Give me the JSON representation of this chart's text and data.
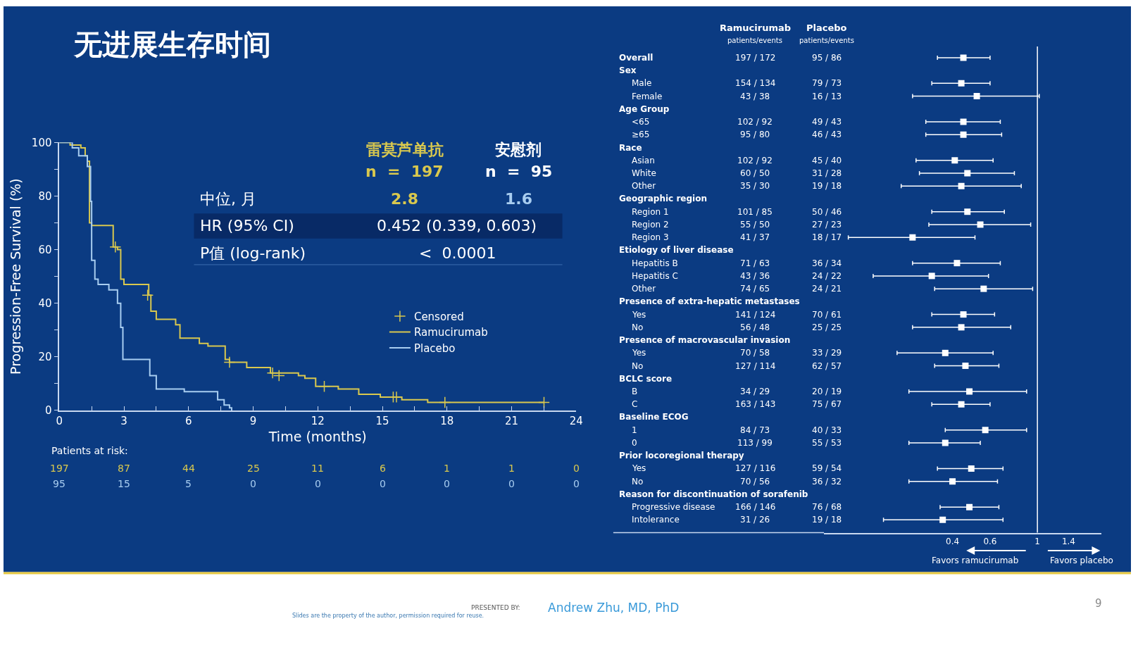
{
  "chart_data": [
    {
      "type": "step",
      "title": "无进展生存时间",
      "xlabel": "Time (months)",
      "ylabel": "Progression-Free Survival (%)",
      "xlim": [
        0,
        24
      ],
      "ylim": [
        0,
        100
      ],
      "xticks": [
        0,
        {
          "value": 1.5,
          "label": null
        },
        3,
        {
          "value": 4.5,
          "label": null
        },
        6,
        {
          "value": 7.5,
          "label": null
        },
        9,
        {
          "value": 10.5,
          "label": null
        },
        12,
        {
          "value": 13.5,
          "label": null
        },
        15,
        {
          "value": 16.5,
          "label": null
        },
        18,
        {
          "value": 19.5,
          "label": null
        },
        21,
        {
          "value": 22.5,
          "label": null
        },
        24
      ],
      "yticks": [
        0,
        {
          "value": 10,
          "label": null
        },
        20,
        {
          "value": 30,
          "label": null
        },
        40,
        {
          "value": 50,
          "label": null
        },
        60,
        {
          "value": 70,
          "label": null
        },
        80,
        {
          "value": 90,
          "label": null
        },
        100
      ],
      "legend": "right",
      "series": [
        {
          "name": "Ramucirumab",
          "color": "#d9c84e",
          "x": [
            0,
            0.5,
            1.0,
            1.2,
            1.3,
            1.4,
            1.5,
            2.5,
            2.7,
            2.85,
            3.0,
            3.7,
            4.15,
            4.25,
            4.5,
            5.4,
            5.6,
            6.5,
            6.9,
            7.55,
            7.7,
            7.9,
            8.6,
            8.7,
            9.7,
            9.8,
            11.1,
            11.4,
            11.9,
            12.95,
            13.9,
            14.9,
            15.8,
            15.9,
            17.1,
            22.5
          ],
          "values": [
            100,
            99,
            98,
            95,
            93,
            70,
            69,
            61,
            60,
            49,
            47,
            47,
            43,
            37,
            34,
            32,
            27,
            25,
            24,
            24,
            19,
            18,
            18,
            16,
            16,
            14,
            13,
            12,
            9,
            8,
            6,
            5,
            5,
            4,
            3,
            3
          ]
        },
        {
          "name": "Placebo",
          "color": "#a8cdf0",
          "x": [
            0,
            0.6,
            0.9,
            1.3,
            1.45,
            1.5,
            1.65,
            1.8,
            2.3,
            2.7,
            2.85,
            2.95,
            4.1,
            4.2,
            4.5,
            5.65,
            5.8,
            7.1,
            7.35,
            7.65,
            7.9,
            8.0
          ],
          "values": [
            100,
            98,
            95,
            91,
            78,
            56,
            49,
            47,
            45,
            40,
            31,
            19,
            19,
            13,
            8,
            8,
            7,
            7,
            4,
            2,
            1,
            0
          ]
        },
        {
          "name": "Censored",
          "type": "scatter",
          "marker": "cross",
          "colors": [
            "#d9c84e",
            "#d9c84e",
            "#d9c84e",
            "#d9c84e",
            "#d9c84e",
            "#d9c84e",
            "#d9c84e",
            "#d9c84e",
            "#d9c84e",
            "#d9c84e"
          ],
          "x": [
            2.6,
            4.1,
            7.9,
            9.9,
            10.2,
            12.3,
            15.5,
            15.65,
            17.9,
            22.5
          ],
          "values": [
            61,
            43,
            18,
            14,
            13,
            9,
            5,
            5,
            3,
            3
          ]
        }
      ],
      "annotations": [
        "雷莫芦单抗",
        "n  =  197",
        "安慰剂",
        "n  =  95",
        "中位, 月",
        "2.8",
        "1.6",
        "HR (95% CI)",
        "0.452 (0.339, 0.603)",
        "P值 (log-rank)",
        "<  0.0001",
        "Patients at risk:",
        "197",
        "87",
        "44",
        "25",
        "11",
        "6",
        "1",
        "1",
        "0",
        "95",
        "15",
        "5",
        "0",
        "0",
        "0",
        "0",
        "0",
        "0",
        "PRESENTED BY:",
        "Andrew Zhu, MD, PhD",
        "Slides are the property of the author, permission required for reuse.",
        "9"
      ]
    },
    {
      "type": "scatter",
      "orientation": "horizontal",
      "log": "x",
      "marker": "square",
      "tick_labels": "x",
      "xlim": [
        0.1,
        2.0
      ],
      "xticks": [
        0.4,
        0.6,
        1,
        1.4
      ],
      "ref_lines": [
        {
          "axis": "x",
          "value": 1,
          "color": "#ffffff"
        }
      ],
      "categories": [
        "Overall",
        "Sex",
        "Male",
        "Female",
        "Age Group",
        "<65",
        "≥65",
        "Race",
        "Asian",
        "White",
        "Other",
        "Geographic region",
        "Region 1",
        "Region 2",
        "Region 3",
        "Etiology of liver disease",
        "Hepatitis B",
        "Hepatitis C",
        "Other",
        "Presence of extra-hepatic metastases",
        "Yes",
        "No",
        "Presence of macrovascular invasion",
        "Yes",
        "No",
        "BCLC score",
        "B",
        "C",
        "Baseline ECOG",
        "1",
        "0",
        "Prior locoregional therapy",
        "Yes",
        "No",
        "Reason for discontinuation of sorafenib",
        "Progressive disease",
        "Intolerance"
      ],
      "series": [
        {
          "color": "#ffffff",
          "values": [
            0.45,
            null,
            0.44,
            0.52,
            null,
            0.45,
            0.45,
            null,
            0.41,
            0.47,
            0.44,
            null,
            0.47,
            0.54,
            0.26,
            null,
            0.42,
            0.32,
            0.56,
            null,
            0.45,
            0.44,
            null,
            0.37,
            0.46,
            null,
            0.48,
            0.44,
            null,
            0.57,
            0.37,
            null,
            0.49,
            0.4,
            null,
            0.48,
            0.36
          ],
          "errors": [
            [
              0.34,
              0.6
            ],
            null,
            [
              0.32,
              0.6
            ],
            [
              0.26,
              1.02
            ],
            null,
            [
              0.3,
              0.67
            ],
            [
              0.3,
              0.68
            ],
            null,
            [
              0.27,
              0.62
            ],
            [
              0.28,
              0.78
            ],
            [
              0.23,
              0.84
            ],
            null,
            [
              0.32,
              0.7
            ],
            [
              0.31,
              0.93
            ],
            [
              0.13,
              0.51
            ],
            null,
            [
              0.26,
              0.67
            ],
            [
              0.17,
              0.59
            ],
            [
              0.33,
              0.95
            ],
            null,
            [
              0.32,
              0.63
            ],
            [
              0.26,
              0.75
            ],
            null,
            [
              0.22,
              0.62
            ],
            [
              0.33,
              0.66
            ],
            null,
            [
              0.25,
              0.89
            ],
            [
              0.32,
              0.6
            ],
            null,
            [
              0.37,
              0.89
            ],
            [
              0.25,
              0.54
            ],
            null,
            [
              0.34,
              0.69
            ],
            [
              0.25,
              0.65
            ],
            null,
            [
              0.35,
              0.66
            ],
            [
              0.19,
              0.69
            ]
          ]
        }
      ],
      "annotations": [
        "Ramucirumab",
        "patients/events",
        "Placebo",
        "patients/events",
        "197 / 172",
        "95 / 86",
        "154 / 134",
        "79 / 73",
        "43 / 38",
        "16 / 13",
        "102 / 92",
        "49 / 43",
        "95 / 80",
        "46 / 43",
        "102 / 92",
        "45 / 40",
        "60 / 50",
        "31 / 28",
        "35 / 30",
        "19 / 18",
        "101 / 85",
        "50 / 46",
        "55 / 50",
        "27 / 23",
        "41 / 37",
        "18 / 17",
        "71 / 63",
        "36 / 34",
        "43 / 36",
        "24 / 22",
        "74 / 65",
        "24 / 21",
        "141 / 124",
        "70 / 61",
        "56 / 48",
        "25 / 25",
        "70 / 58",
        "33 / 29",
        "127 / 114",
        "62 / 57",
        "34 / 29",
        "20 / 19",
        "163 / 143",
        "75 / 67",
        "84 / 73",
        "40 / 33",
        "113 / 99",
        "55 / 53",
        "127 / 116",
        "59 / 54",
        "70 / 56",
        "36 / 32",
        "166 / 146",
        "76 / 68",
        "31 / 26",
        "19 / 18",
        "Favors ramucirumab",
        "Favors placebo"
      ]
    }
  ]
}
